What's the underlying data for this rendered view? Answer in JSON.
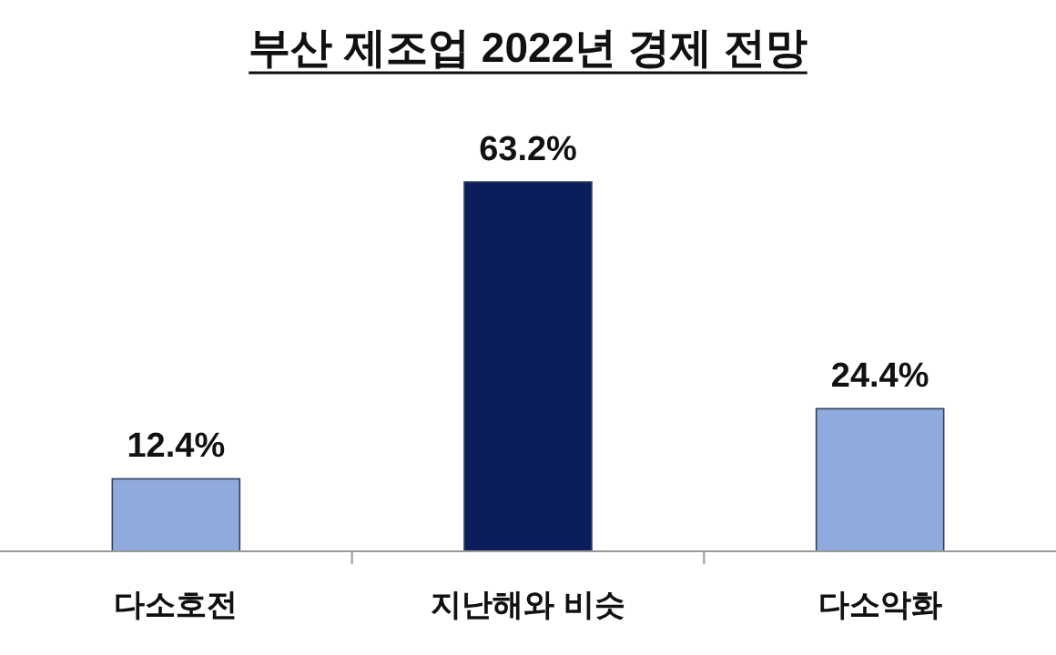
{
  "chart_data": {
    "type": "bar",
    "title": "부산 제조업 2022년 경제 전망",
    "categories": [
      "다소호전",
      "지난해와 비슷",
      "다소악화"
    ],
    "values": [
      12.4,
      63.2,
      24.4
    ],
    "colors": [
      "#8faadc",
      "#0b1c5a",
      "#8faadc"
    ],
    "value_labels": [
      "12.4%",
      "63.2%",
      "24.4%"
    ]
  }
}
